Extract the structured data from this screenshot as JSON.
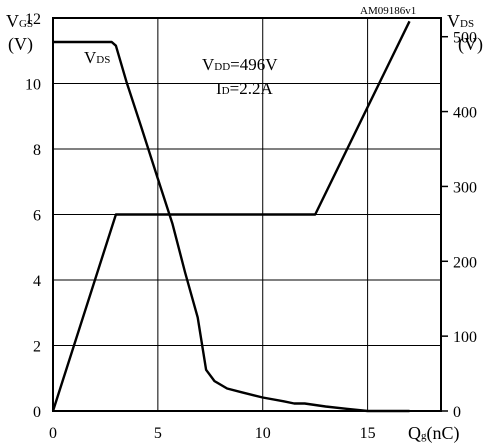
{
  "chart_data": {
    "type": "line",
    "code": "AM09186v1",
    "left_axis": {
      "label_main": "V",
      "label_sub": "GS",
      "unit": "(V)",
      "range": [
        0,
        12
      ],
      "ticks": [
        0,
        2,
        4,
        6,
        8,
        10,
        12
      ],
      "tick_labels": [
        "0",
        "2",
        "4",
        "6",
        "8",
        "10",
        "12"
      ]
    },
    "right_axis": {
      "label_main": "V",
      "label_sub": "DS",
      "unit": "(V)",
      "range": [
        0,
        525
      ],
      "ticks": [
        0,
        100,
        200,
        300,
        400,
        500
      ],
      "tick_labels": [
        "0",
        "100",
        "200",
        "300",
        "400",
        "500"
      ]
    },
    "x_axis": {
      "label_main": "Q",
      "label_sub": "g",
      "label_unit": "(nC)",
      "range": [
        0,
        18.5
      ],
      "ticks": [
        0,
        5,
        10,
        15
      ],
      "tick_labels": [
        "0",
        "5",
        "10",
        "15"
      ]
    },
    "grid": true,
    "annotations": {
      "vds_label": {
        "main": "V",
        "sub": "DS"
      },
      "vdd_line": {
        "main": "V",
        "sub": "DD",
        "value": "=496V"
      },
      "id_line": {
        "main": "I",
        "sub": "D",
        "value": "=2.2A"
      }
    },
    "series": [
      {
        "axis": "left",
        "x": [
          0,
          3.0,
          12.5,
          17.0
        ],
        "y": [
          0,
          6.0,
          6.0,
          11.9
        ]
      },
      {
        "axis": "right",
        "x": [
          0,
          2.8,
          3.0,
          3.5,
          4.2,
          5.0,
          5.7,
          6.3,
          6.9,
          7.3,
          7.7,
          8.3,
          9.0,
          10.0,
          11.0,
          11.5,
          12.0,
          13.0,
          14.0,
          15.0,
          16.0,
          17.0
        ],
        "y": [
          493,
          493,
          488,
          440,
          380,
          310,
          250,
          185,
          125,
          55,
          40,
          30,
          25,
          18,
          13,
          10,
          10,
          6,
          3,
          0,
          0,
          0
        ]
      }
    ]
  }
}
